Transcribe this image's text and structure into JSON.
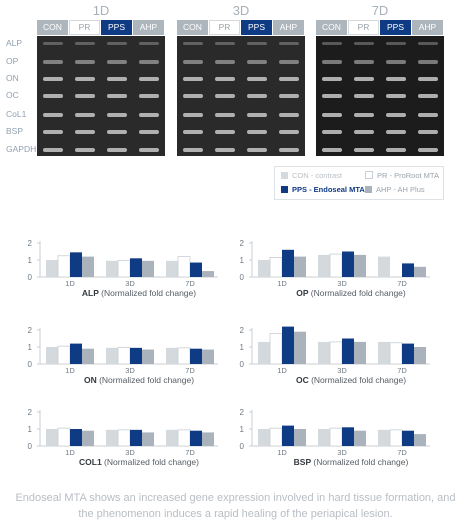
{
  "gel_panel": {
    "timepoints": [
      "1D",
      "3D",
      "7D"
    ],
    "lanes": [
      "CON",
      "PR",
      "PPS",
      "AHP"
    ],
    "genes": [
      "ALP",
      "OP",
      "ON",
      "OC",
      "CoL1",
      "BSP",
      "GAPDH"
    ]
  },
  "legend": {
    "items": [
      {
        "key": "CON",
        "label": "CON - contrast",
        "color": "#d4d9dd"
      },
      {
        "key": "PR",
        "label": "PR - ProRoot MTA",
        "color": "#ffffff"
      },
      {
        "key": "PPS",
        "label": "PPS - Endoseal MTA",
        "color": "#0f3a84"
      },
      {
        "key": "AHP",
        "label": "AHP - AH Plus",
        "color": "#aab3bb"
      }
    ]
  },
  "chart_data": [
    {
      "type": "bar",
      "gene": "ALP",
      "title": "(Normalized fold change)",
      "categories": [
        "1D",
        "3D",
        "7D"
      ],
      "ylim": [
        0,
        2
      ],
      "yticks": [
        0,
        1,
        2
      ],
      "series": [
        {
          "name": "CON",
          "values": [
            1.0,
            0.95,
            0.95
          ]
        },
        {
          "name": "PR",
          "values": [
            1.25,
            0.98,
            1.2
          ]
        },
        {
          "name": "PPS",
          "values": [
            1.45,
            1.1,
            0.85
          ]
        },
        {
          "name": "AHP",
          "values": [
            1.2,
            0.95,
            0.35
          ]
        }
      ]
    },
    {
      "type": "bar",
      "gene": "OP",
      "title": "(Normalized fold change)",
      "categories": [
        "1D",
        "3D",
        "7D"
      ],
      "ylim": [
        0,
        2
      ],
      "yticks": [
        0,
        1,
        2
      ],
      "series": [
        {
          "name": "CON",
          "values": [
            1.0,
            1.3,
            1.2
          ]
        },
        {
          "name": "PR",
          "values": [
            1.15,
            1.35,
            0.0
          ]
        },
        {
          "name": "PPS",
          "values": [
            1.6,
            1.5,
            0.8
          ]
        },
        {
          "name": "AHP",
          "values": [
            1.2,
            1.3,
            0.6
          ]
        }
      ]
    },
    {
      "type": "bar",
      "gene": "ON",
      "title": "(Normalized fold change)",
      "categories": [
        "1D",
        "3D",
        "7D"
      ],
      "ylim": [
        0,
        2
      ],
      "yticks": [
        0,
        1,
        2
      ],
      "series": [
        {
          "name": "CON",
          "values": [
            1.0,
            0.95,
            0.95
          ]
        },
        {
          "name": "PR",
          "values": [
            1.05,
            0.98,
            0.95
          ]
        },
        {
          "name": "PPS",
          "values": [
            1.2,
            0.95,
            0.9
          ]
        },
        {
          "name": "AHP",
          "values": [
            0.9,
            0.85,
            0.85
          ]
        }
      ]
    },
    {
      "type": "bar",
      "gene": "OC",
      "title": "(Normalized fold change)",
      "categories": [
        "1D",
        "3D",
        "7D"
      ],
      "ylim": [
        0,
        2
      ],
      "yticks": [
        0,
        1,
        2
      ],
      "series": [
        {
          "name": "CON",
          "values": [
            1.3,
            1.3,
            1.3
          ]
        },
        {
          "name": "PR",
          "values": [
            1.8,
            1.3,
            1.25
          ]
        },
        {
          "name": "PPS",
          "values": [
            2.2,
            1.5,
            1.2
          ]
        },
        {
          "name": "AHP",
          "values": [
            1.9,
            1.3,
            1.0
          ]
        }
      ]
    },
    {
      "type": "bar",
      "gene": "COL1",
      "title": "(Normalized fold change)",
      "categories": [
        "1D",
        "3D",
        "7D"
      ],
      "ylim": [
        0,
        2
      ],
      "yticks": [
        0,
        1,
        2
      ],
      "series": [
        {
          "name": "CON",
          "values": [
            1.0,
            0.95,
            0.95
          ]
        },
        {
          "name": "PR",
          "values": [
            1.05,
            0.95,
            0.95
          ]
        },
        {
          "name": "PPS",
          "values": [
            1.0,
            0.95,
            0.9
          ]
        },
        {
          "name": "AHP",
          "values": [
            0.9,
            0.8,
            0.8
          ]
        }
      ]
    },
    {
      "type": "bar",
      "gene": "BSP",
      "title": "(Normalized fold change)",
      "categories": [
        "1D",
        "3D",
        "7D"
      ],
      "ylim": [
        0,
        2
      ],
      "yticks": [
        0,
        1,
        2
      ],
      "series": [
        {
          "name": "CON",
          "values": [
            1.0,
            1.0,
            0.95
          ]
        },
        {
          "name": "PR",
          "values": [
            1.05,
            1.05,
            0.95
          ]
        },
        {
          "name": "PPS",
          "values": [
            1.2,
            1.1,
            0.9
          ]
        },
        {
          "name": "AHP",
          "values": [
            1.0,
            0.9,
            0.7
          ]
        }
      ]
    }
  ],
  "caption": "Endoseal MTA shows an increased gene expression involved in hard tissue formation, and the phenomenon induces a rapid healing of the periapical lesion."
}
